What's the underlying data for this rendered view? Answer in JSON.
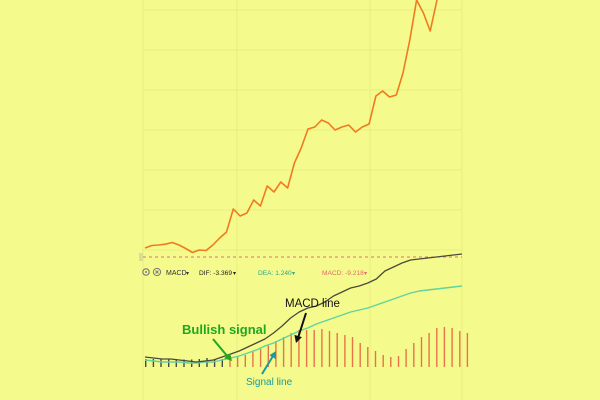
{
  "toolbar": {
    "settings_icon": "gear-icon",
    "close_icon": "close-icon",
    "indicator_label": "MACD",
    "dif_label": "DIF: -3.369",
    "dea_label": "DEA: 1.240",
    "macd_label": "MACD: -9.218",
    "dropdown_glyph": "▾"
  },
  "annotations": {
    "macd_line_label": "MACD line",
    "bullish_label": "Bullish signal",
    "signal_line_label": "Signal line"
  },
  "colors": {
    "background": "#f5fa8c",
    "price_line": "#f07a22",
    "macd_line": "#4a4a3c",
    "signal_line": "#5fd3a0",
    "histogram": "#e8734a",
    "grid": "#e8ed80",
    "dashed_reference": "#e07070",
    "bullish": "#1fa81f",
    "signal_annotation": "#1a9a9a",
    "macd_annotation": "#111111"
  },
  "chart_data": [
    {
      "type": "line",
      "series": [
        {
          "values": [
            248,
            245.5,
            245,
            244.2,
            242.5,
            245,
            248.5,
            252.5,
            250,
            250.5,
            245,
            238,
            232,
            209,
            216,
            213,
            200,
            206,
            186,
            192,
            182,
            188,
            163,
            148,
            129,
            127,
            120,
            123,
            130,
            127,
            125,
            132,
            127,
            124,
            96,
            91,
            97,
            95,
            73,
            40,
            0,
            13,
            31,
            0
          ]
        }
      ],
      "reference_line": 257
    },
    {
      "type": "line",
      "series": [
        {
          "name": "MACD line",
          "values": [
            357,
            358,
            359,
            359,
            360,
            361,
            362,
            361,
            360,
            357,
            354,
            351,
            347,
            343,
            339,
            333,
            326,
            318,
            312,
            308,
            306,
            302,
            296,
            292,
            288,
            286,
            283,
            279,
            271,
            267,
            263,
            260,
            259,
            258,
            257,
            256,
            255,
            254
          ]
        },
        {
          "name": "Signal line",
          "values": [
            360,
            361,
            362,
            362,
            362,
            363,
            363,
            362,
            362,
            360,
            358,
            356,
            353,
            350,
            346,
            343,
            339,
            335,
            331,
            328,
            324,
            321,
            318,
            315,
            312,
            310,
            308,
            305,
            302,
            299,
            296,
            293,
            291,
            290,
            289,
            288,
            287,
            286
          ]
        },
        {
          "values": [
            2,
            2,
            2,
            2,
            1.5,
            1.5,
            1.5,
            2,
            3,
            2,
            2,
            4,
            5,
            6,
            9,
            12,
            16,
            20,
            24,
            28,
            31,
            31,
            31,
            32,
            30,
            28,
            26,
            24,
            18,
            14,
            10,
            6,
            4,
            5,
            12,
            18,
            24,
            28,
            33,
            34,
            33,
            30,
            28
          ]
        }
      ]
    }
  ]
}
